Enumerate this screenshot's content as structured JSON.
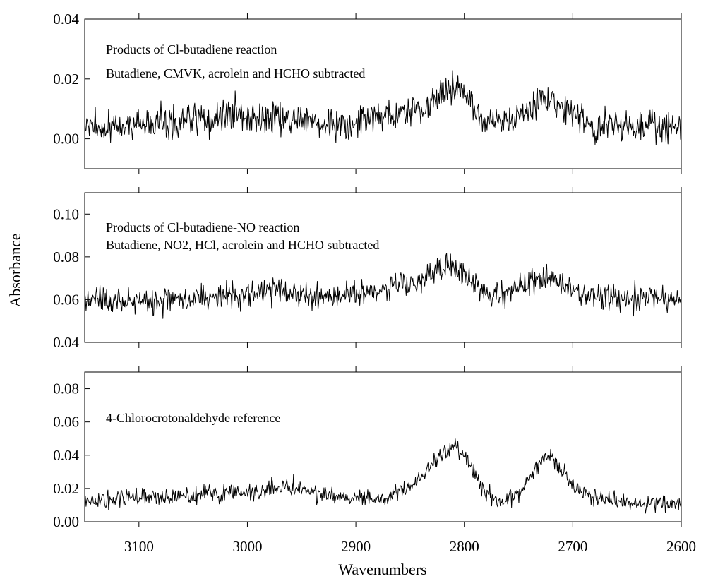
{
  "chart_data": {
    "type": "line",
    "xlabel": "Wavenumbers",
    "ylabel": "Absorbance",
    "x_reversed": true,
    "xlim": [
      3150,
      2600
    ],
    "x_ticks": [
      3100,
      3000,
      2900,
      2800,
      2700,
      2600
    ],
    "x_tick_labels": [
      "3100",
      "3000",
      "2900",
      "2800",
      "2700",
      "2600"
    ],
    "colors": {
      "line": "#000000",
      "frame": "#000000",
      "background": "#ffffff"
    },
    "panels": [
      {
        "id": "top",
        "ylim": [
          -0.01,
          0.04
        ],
        "y_ticks": [
          0.0,
          0.02,
          0.04
        ],
        "y_tick_labels": [
          "0.00",
          "0.02",
          "0.04"
        ],
        "annotations": [
          "Products of Cl-butadiene reaction",
          "Butadiene, CMVK, acrolein and HCHO subtracted"
        ],
        "series": [
          {
            "x": [
              3150,
              3140,
              3130,
              3120,
              3110,
              3100,
              3090,
              3080,
              3070,
              3060,
              3050,
              3040,
              3030,
              3020,
              3010,
              3000,
              2990,
              2980,
              2970,
              2960,
              2950,
              2940,
              2930,
              2920,
              2910,
              2900,
              2890,
              2880,
              2870,
              2860,
              2850,
              2840,
              2830,
              2820,
              2815,
              2810,
              2800,
              2795,
              2790,
              2780,
              2770,
              2760,
              2750,
              2740,
              2730,
              2725,
              2720,
              2710,
              2700,
              2690,
              2680,
              2670,
              2660,
              2650,
              2640,
              2630,
              2620,
              2610,
              2600
            ],
            "y": [
              0.004,
              0.005,
              0.003,
              0.004,
              0.005,
              0.004,
              0.005,
              0.006,
              0.005,
              0.006,
              0.007,
              0.006,
              0.007,
              0.008,
              0.009,
              0.008,
              0.007,
              0.008,
              0.007,
              0.006,
              0.006,
              0.005,
              0.004,
              0.006,
              0.005,
              0.006,
              0.007,
              0.007,
              0.008,
              0.009,
              0.009,
              0.01,
              0.013,
              0.016,
              0.018,
              0.017,
              0.016,
              0.013,
              0.009,
              0.006,
              0.005,
              0.006,
              0.008,
              0.011,
              0.014,
              0.015,
              0.013,
              0.01,
              0.008,
              0.006,
              0.005,
              0.005,
              0.004,
              0.005,
              0.004,
              0.005,
              0.004,
              0.004,
              0.004
            ],
            "noise_amplitude": 0.0035
          }
        ]
      },
      {
        "id": "middle",
        "ylim": [
          0.04,
          0.11
        ],
        "y_ticks": [
          0.04,
          0.06,
          0.08,
          0.1
        ],
        "y_tick_labels": [
          "0.04",
          "0.06",
          "0.08",
          "0.10"
        ],
        "annotations": [
          "Products of Cl-butadiene-NO reaction",
          "Butadiene, NO2, HCl, acrolein and HCHO subtracted"
        ],
        "series": [
          {
            "x": [
              3150,
              3140,
              3130,
              3120,
              3110,
              3100,
              3090,
              3080,
              3070,
              3060,
              3050,
              3040,
              3030,
              3020,
              3010,
              3000,
              2990,
              2980,
              2970,
              2960,
              2950,
              2940,
              2930,
              2920,
              2910,
              2900,
              2890,
              2880,
              2870,
              2860,
              2850,
              2840,
              2830,
              2820,
              2815,
              2810,
              2805,
              2800,
              2795,
              2790,
              2780,
              2770,
              2760,
              2750,
              2740,
              2730,
              2725,
              2720,
              2710,
              2700,
              2690,
              2680,
              2670,
              2660,
              2650,
              2640,
              2630,
              2620,
              2610,
              2600
            ],
            "y": [
              0.06,
              0.06,
              0.06,
              0.06,
              0.059,
              0.06,
              0.06,
              0.059,
              0.06,
              0.06,
              0.06,
              0.061,
              0.061,
              0.062,
              0.062,
              0.063,
              0.063,
              0.064,
              0.063,
              0.062,
              0.063,
              0.062,
              0.062,
              0.062,
              0.063,
              0.062,
              0.064,
              0.065,
              0.065,
              0.066,
              0.067,
              0.069,
              0.072,
              0.075,
              0.076,
              0.075,
              0.074,
              0.073,
              0.07,
              0.065,
              0.063,
              0.062,
              0.063,
              0.065,
              0.068,
              0.07,
              0.071,
              0.07,
              0.067,
              0.064,
              0.062,
              0.062,
              0.061,
              0.061,
              0.061,
              0.06,
              0.06,
              0.06,
              0.06,
              0.06
            ],
            "noise_amplitude": 0.004
          }
        ]
      },
      {
        "id": "bottom",
        "ylim": [
          0.0,
          0.09
        ],
        "y_ticks": [
          0.0,
          0.02,
          0.04,
          0.06,
          0.08
        ],
        "y_tick_labels": [
          "0.00",
          "0.02",
          "0.04",
          "0.06",
          "0.08"
        ],
        "annotations": [
          "4-Chlorocrotonaldehyde reference"
        ],
        "series": [
          {
            "x": [
              3150,
              3140,
              3130,
              3120,
              3110,
              3100,
              3090,
              3080,
              3070,
              3060,
              3050,
              3040,
              3030,
              3020,
              3010,
              3000,
              2990,
              2980,
              2970,
              2960,
              2950,
              2940,
              2930,
              2920,
              2910,
              2900,
              2890,
              2880,
              2870,
              2860,
              2850,
              2840,
              2830,
              2820,
              2815,
              2810,
              2805,
              2800,
              2795,
              2790,
              2780,
              2770,
              2760,
              2750,
              2740,
              2735,
              2730,
              2725,
              2720,
              2715,
              2710,
              2700,
              2690,
              2680,
              2670,
              2660,
              2650,
              2640,
              2630,
              2620,
              2610,
              2600
            ],
            "y": [
              0.012,
              0.012,
              0.012,
              0.013,
              0.014,
              0.015,
              0.015,
              0.015,
              0.015,
              0.016,
              0.016,
              0.017,
              0.017,
              0.017,
              0.017,
              0.018,
              0.018,
              0.019,
              0.02,
              0.022,
              0.02,
              0.018,
              0.016,
              0.015,
              0.014,
              0.015,
              0.014,
              0.014,
              0.015,
              0.017,
              0.021,
              0.027,
              0.034,
              0.041,
              0.044,
              0.045,
              0.043,
              0.041,
              0.035,
              0.027,
              0.017,
              0.012,
              0.013,
              0.017,
              0.026,
              0.031,
              0.036,
              0.039,
              0.039,
              0.036,
              0.03,
              0.022,
              0.017,
              0.015,
              0.014,
              0.013,
              0.012,
              0.011,
              0.011,
              0.011,
              0.01,
              0.01
            ],
            "noise_amplitude": 0.0035
          }
        ]
      }
    ]
  }
}
